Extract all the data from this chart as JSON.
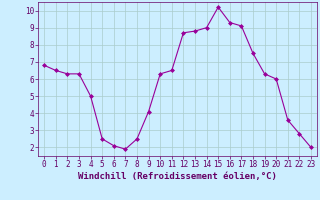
{
  "x": [
    0,
    1,
    2,
    3,
    4,
    5,
    6,
    7,
    8,
    9,
    10,
    11,
    12,
    13,
    14,
    15,
    16,
    17,
    18,
    19,
    20,
    21,
    22,
    23
  ],
  "y": [
    6.8,
    6.5,
    6.3,
    6.3,
    5.0,
    2.5,
    2.1,
    1.9,
    2.5,
    4.1,
    6.3,
    6.5,
    8.7,
    8.8,
    9.0,
    10.2,
    9.3,
    9.1,
    7.5,
    6.3,
    6.0,
    3.6,
    2.8,
    2.0
  ],
  "line_color": "#990099",
  "marker": "D",
  "marker_size": 2,
  "bg_color": "#cceeff",
  "grid_color": "#aacccc",
  "xlabel": "Windchill (Refroidissement éolien,°C)",
  "xlabel_fontsize": 6.5,
  "xlim": [
    -0.5,
    23.5
  ],
  "ylim": [
    1.5,
    10.5
  ],
  "yticks": [
    2,
    3,
    4,
    5,
    6,
    7,
    8,
    9,
    10
  ],
  "xticks": [
    0,
    1,
    2,
    3,
    4,
    5,
    6,
    7,
    8,
    9,
    10,
    11,
    12,
    13,
    14,
    15,
    16,
    17,
    18,
    19,
    20,
    21,
    22,
    23
  ],
  "tick_fontsize": 5.5,
  "axis_color": "#660066",
  "linewidth": 0.8
}
